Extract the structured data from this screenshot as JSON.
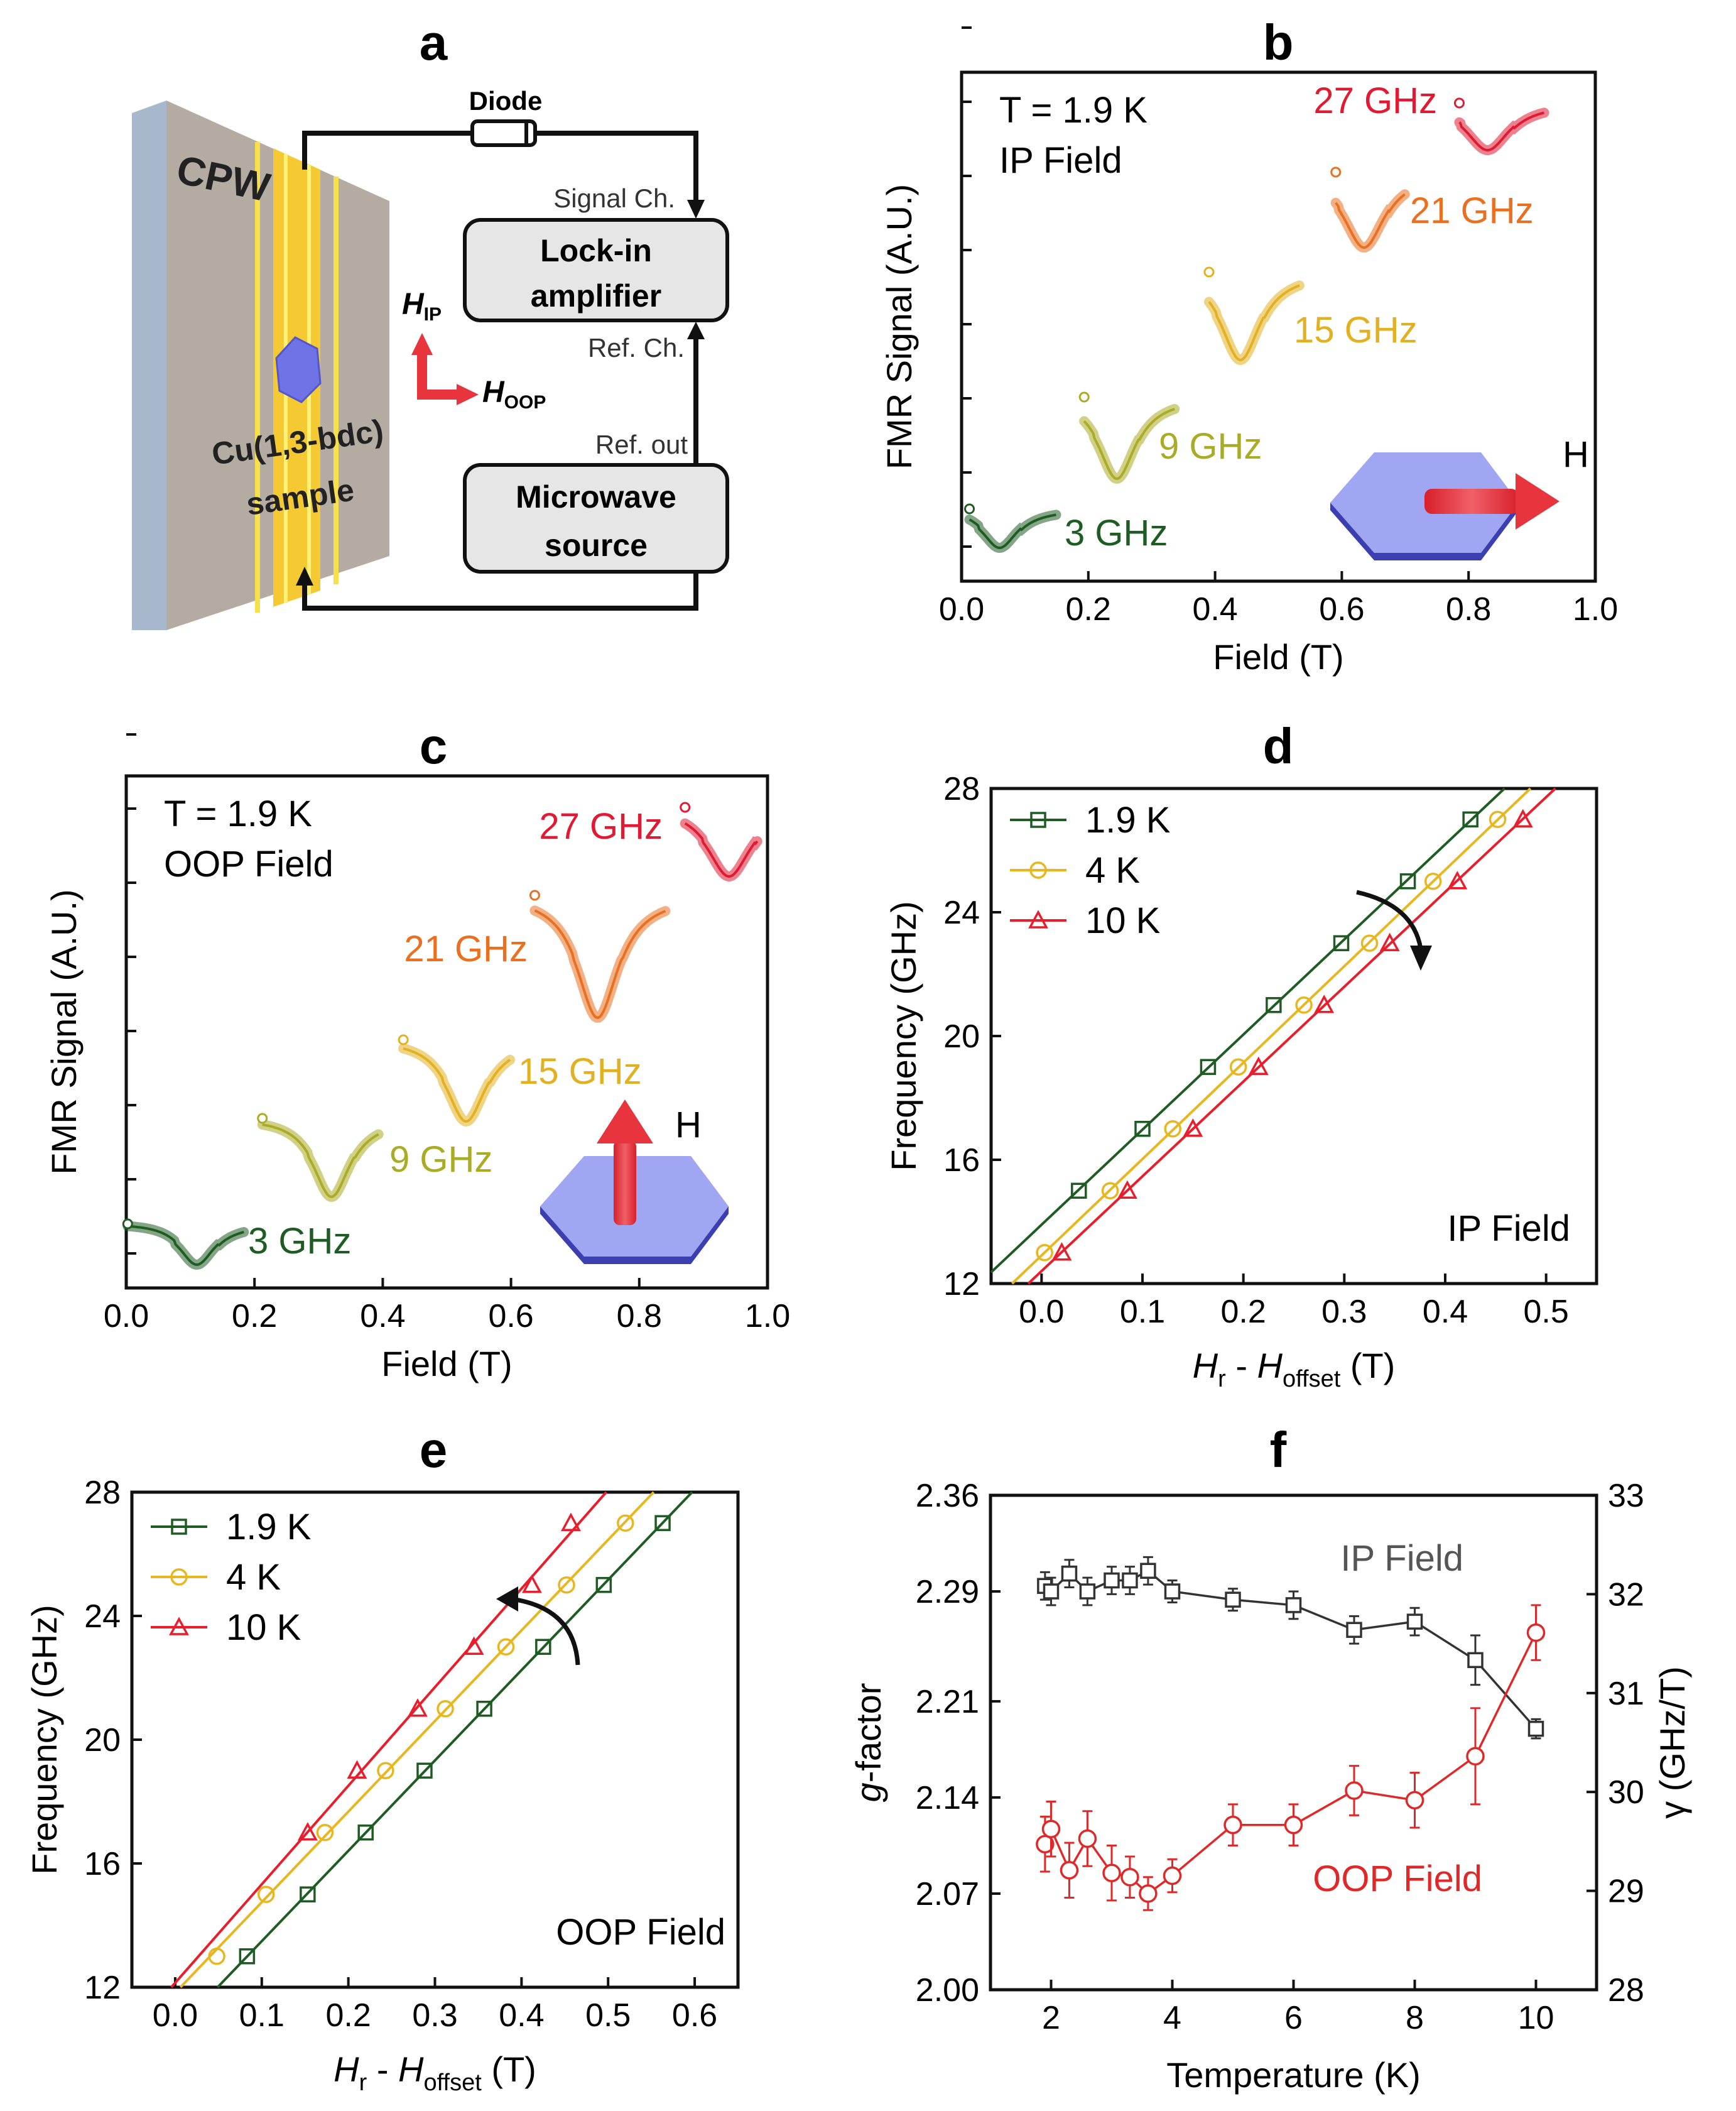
{
  "panel_labels": {
    "a": "a",
    "b": "b",
    "c": "c",
    "d": "d",
    "e": "e",
    "f": "f"
  },
  "schematic": {
    "cpw": "CPW",
    "sample_line1": "Cu(1,3-bdc)",
    "sample_line2": "sample",
    "diode": "Diode",
    "signal_ch": "Signal Ch.",
    "lockin_line1": "Lock-in",
    "lockin_line2": "amplifier",
    "ref_ch": "Ref. Ch.",
    "ref_out": "Ref. out",
    "microwave_line1": "Microwave",
    "microwave_line2": "source",
    "h_ip": "H",
    "h_ip_sub": "IP",
    "h_oop": "H",
    "h_oop_sub": "OOP"
  },
  "colors": {
    "g3": "#1f5c23",
    "g9": "#a9ac24",
    "g15": "#e3b020",
    "g21": "#ea6f1f",
    "g27": "#e01a32",
    "k19": "#1f5c23",
    "k4": "#e8b61e",
    "k10": "#e81e2c",
    "ip": "#333333",
    "oop": "#e02828",
    "hex": "#8f96ee",
    "arrow": "#e8343c"
  },
  "chart_data": [
    {
      "panel": "b",
      "type": "line",
      "annotation_line1": "T = 1.9 K",
      "annotation_line2": "IP Field",
      "xlabel": "Field (T)",
      "ylabel": "FMR Signal (A.U.)",
      "xlim": [
        0.0,
        1.0
      ],
      "xticks": [
        "0.0",
        "0.2",
        "0.4",
        "0.6",
        "0.8",
        "1.0"
      ],
      "field_label": "H",
      "series": [
        {
          "name": "3 GHz",
          "resonance_T": 0.06
        },
        {
          "name": "9 GHz",
          "resonance_T": 0.245
        },
        {
          "name": "15 GHz",
          "resonance_T": 0.44
        },
        {
          "name": "21 GHz",
          "resonance_T": 0.635
        },
        {
          "name": "27 GHz",
          "resonance_T": 0.83
        }
      ]
    },
    {
      "panel": "c",
      "type": "line",
      "annotation_line1": "T = 1.9 K",
      "annotation_line2": "OOP Field",
      "xlabel": "Field (T)",
      "ylabel": "FMR Signal (A.U.)",
      "xlim": [
        0.0,
        1.0
      ],
      "xticks": [
        "0.0",
        "0.2",
        "0.4",
        "0.6",
        "0.8",
        "1.0"
      ],
      "field_label": "H",
      "series": [
        {
          "name": "3 GHz",
          "resonance_T": 0.11
        },
        {
          "name": "9 GHz",
          "resonance_T": 0.32
        },
        {
          "name": "15 GHz",
          "resonance_T": 0.53
        },
        {
          "name": "21 GHz",
          "resonance_T": 0.735
        },
        {
          "name": "27 GHz",
          "resonance_T": 0.94
        }
      ]
    },
    {
      "panel": "d",
      "type": "scatter",
      "annotation": "IP Field",
      "xlabel": "H",
      "xlabel_sub1": "r",
      "xlabel_mid": " - H",
      "xlabel_sub2": "offset",
      "xlabel_unit": " (T)",
      "ylabel": "Frequency (GHz)",
      "xlim": [
        -0.05,
        0.55
      ],
      "ylim": [
        12,
        28
      ],
      "xticks": [
        "0.0",
        "0.1",
        "0.2",
        "0.3",
        "0.4",
        "0.5"
      ],
      "yticks": [
        "12",
        "16",
        "20",
        "24",
        "28"
      ],
      "series": [
        {
          "name": "1.9 K",
          "x": [
            0.037,
            0.1,
            0.165,
            0.23,
            0.297,
            0.363,
            0.425
          ],
          "y": [
            15,
            17,
            19,
            21,
            23,
            25,
            27
          ]
        },
        {
          "name": "4 K",
          "x": [
            0.003,
            0.068,
            0.13,
            0.195,
            0.26,
            0.325,
            0.388,
            0.452
          ],
          "y": [
            13,
            15,
            17,
            19,
            21,
            23,
            25,
            27
          ]
        },
        {
          "name": "10 K",
          "x": [
            0.02,
            0.085,
            0.15,
            0.215,
            0.28,
            0.345,
            0.412,
            0.477
          ],
          "y": [
            13,
            15,
            17,
            19,
            21,
            23,
            25,
            27
          ]
        }
      ]
    },
    {
      "panel": "e",
      "type": "scatter",
      "annotation": "OOP Field",
      "xlabel": "H",
      "xlabel_sub1": "r",
      "xlabel_mid": " - H",
      "xlabel_sub2": "offset",
      "xlabel_unit": " (T)",
      "ylabel": "Frequency (GHz)",
      "xlim": [
        -0.05,
        0.65
      ],
      "ylim": [
        12,
        28
      ],
      "xticks": [
        "0.0",
        "0.1",
        "0.2",
        "0.3",
        "0.4",
        "0.5",
        "0.6"
      ],
      "yticks": [
        "12",
        "16",
        "20",
        "24",
        "28"
      ],
      "series": [
        {
          "name": "1.9 K",
          "x": [
            0.083,
            0.153,
            0.22,
            0.288,
            0.357,
            0.425,
            0.495,
            0.563
          ],
          "y": [
            13,
            15,
            17,
            19,
            21,
            23,
            25,
            27
          ]
        },
        {
          "name": "4 K",
          "x": [
            0.048,
            0.105,
            0.173,
            0.243,
            0.312,
            0.382,
            0.452,
            0.52
          ],
          "y": [
            13,
            15,
            17,
            19,
            21,
            23,
            25,
            27
          ]
        },
        {
          "name": "10 K",
          "x": [
            0.153,
            0.21,
            0.28,
            0.345,
            0.412,
            0.457
          ],
          "y": [
            17,
            19,
            21,
            23,
            25,
            27
          ]
        }
      ]
    },
    {
      "panel": "f",
      "type": "line",
      "xlabel": "Temperature (K)",
      "ylabel_left_italic": "g",
      "ylabel_left_rest": "-factor",
      "ylabel_right": "γ (GHz/T)",
      "xlim": [
        1,
        11
      ],
      "ylim_left": [
        2.0,
        2.36
      ],
      "ylim_right": [
        28,
        33
      ],
      "xticks": [
        "2",
        "4",
        "6",
        "8",
        "10"
      ],
      "yticks_left": [
        "2.00",
        "2.07",
        "2.14",
        "2.21",
        "2.29",
        "2.36"
      ],
      "yticks_right": [
        "28",
        "29",
        "30",
        "31",
        "32",
        "33"
      ],
      "series": [
        {
          "name": "IP Field",
          "x": [
            1.9,
            2.0,
            2.3,
            2.6,
            3.0,
            3.3,
            3.6,
            4.0,
            5.0,
            6.0,
            7.0,
            8.0,
            9.0,
            10.0
          ],
          "y": [
            2.294,
            2.29,
            2.303,
            2.29,
            2.298,
            2.298,
            2.305,
            2.29,
            2.284,
            2.28,
            2.262,
            2.268,
            2.24,
            2.19
          ],
          "err": [
            0.01,
            0.01,
            0.01,
            0.01,
            0.01,
            0.01,
            0.01,
            0.008,
            0.008,
            0.01,
            0.01,
            0.01,
            0.018,
            0.007
          ]
        },
        {
          "name": "OOP Field",
          "x": [
            1.9,
            2.0,
            2.3,
            2.6,
            3.0,
            3.3,
            3.6,
            4.0,
            5.0,
            6.0,
            7.0,
            8.0,
            9.0,
            10.0
          ],
          "y": [
            2.106,
            2.117,
            2.087,
            2.11,
            2.085,
            2.082,
            2.07,
            2.083,
            2.12,
            2.12,
            2.145,
            2.138,
            2.17,
            2.26
          ],
          "err": [
            0.02,
            0.02,
            0.02,
            0.02,
            0.02,
            0.015,
            0.012,
            0.012,
            0.015,
            0.015,
            0.018,
            0.02,
            0.035,
            0.02
          ]
        }
      ]
    }
  ]
}
